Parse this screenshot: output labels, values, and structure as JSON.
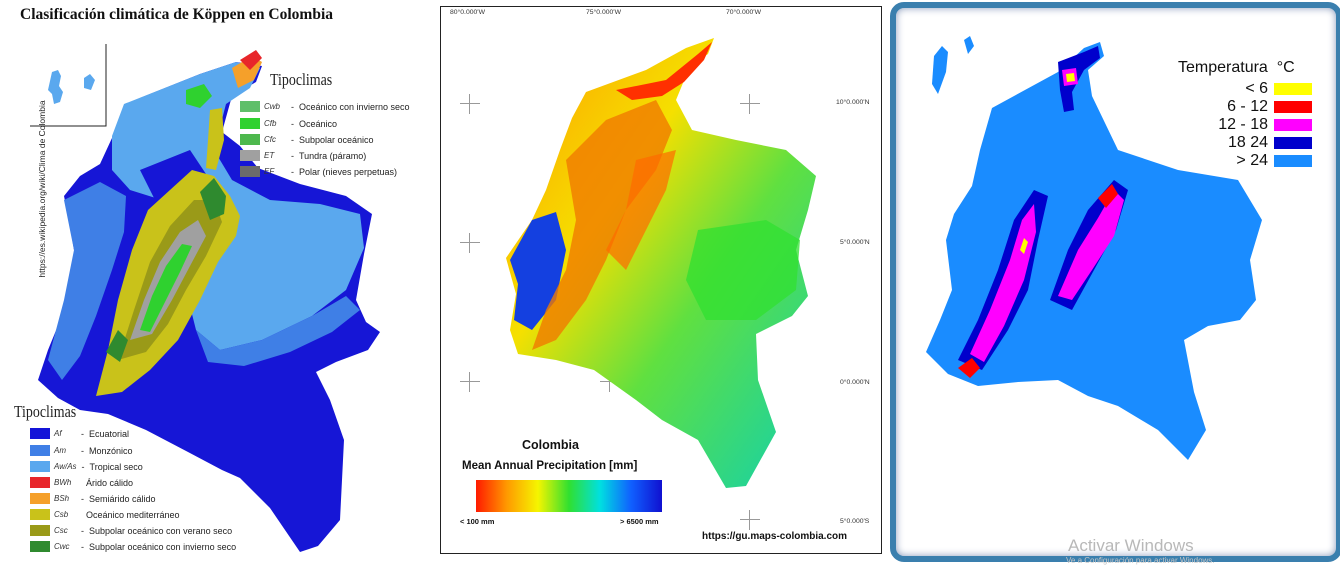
{
  "panel1": {
    "title": "Clasificación climática de Köppen en Colombia",
    "source_vertical": "https://es.wikipedia.org/wiki/Clima de Colombia",
    "legend_top": {
      "heading": "Tipoclimas",
      "items": [
        {
          "code": "Cwb",
          "label": "Oceánico con invierno seco",
          "color": "#5fbf6a"
        },
        {
          "code": "Cfb",
          "label": "Oceánico",
          "color": "#2fd12f"
        },
        {
          "code": "Cfc",
          "label": "Subpolar oceánico",
          "color": "#4db84d"
        },
        {
          "code": "ET",
          "label": "Tundra (páramo)",
          "color": "#a0a0a0"
        },
        {
          "code": "EF",
          "label": "Polar (nieves perpetuas)",
          "color": "#6b6b6b"
        }
      ]
    },
    "legend_bottom": {
      "heading": "Tipoclimas",
      "items": [
        {
          "code": "Af",
          "label": "Ecuatorial",
          "color": "#1414d8"
        },
        {
          "code": "Am",
          "label": "Monzónico",
          "color": "#3f7fe6"
        },
        {
          "code": "Aw/As",
          "label": "Tropical seco",
          "color": "#5aa8ee"
        },
        {
          "code": "BWh",
          "label": "Árido cálido",
          "color": "#e8262a"
        },
        {
          "code": "BSh",
          "label": "Semiárido cálido",
          "color": "#f5a02a"
        },
        {
          "code": "Csb",
          "label": "Oceánico mediterráneo",
          "color": "#c9c21a"
        },
        {
          "code": "Csc",
          "label": "Subpolar oceánico con verano seco",
          "color": "#9a9a18"
        },
        {
          "code": "Cwc",
          "label": "Subpolar oceánico con invierno seco",
          "color": "#2f8a2f"
        }
      ]
    }
  },
  "panel2": {
    "top_coords": [
      "80°0.000'W",
      "75°0.000'W",
      "70°0.000'W"
    ],
    "right_coords": [
      "10°0.000'N",
      "5°0.000'N",
      "0°0.000'N",
      "5°0.000'S"
    ],
    "legend_title": "Colombia",
    "legend_subtitle": "Mean Annual Precipitation [mm]",
    "legend_min": "< 100 mm",
    "legend_max": "> 6500 mm",
    "ramp_colors": [
      "#ff1a00",
      "#ff9a00",
      "#f5f500",
      "#30e030",
      "#00e0e0",
      "#1060ff",
      "#1010d0"
    ],
    "credit": "https://gu.maps-colombia.com"
  },
  "panel3": {
    "legend_title": "Temperatura  °C",
    "items": [
      {
        "label": "< 6",
        "color": "#ffff00"
      },
      {
        "label": "6 - 12",
        "color": "#ff0000"
      },
      {
        "label": "12 - 18",
        "color": "#ff00ff"
      },
      {
        "label": "18 24",
        "color": "#0000cc"
      },
      {
        "label": "> 24",
        "color": "#1a8cff"
      }
    ]
  },
  "watermark": {
    "line1": "Activar Windows",
    "line2": "Ve a Configuración para activar Windows."
  }
}
